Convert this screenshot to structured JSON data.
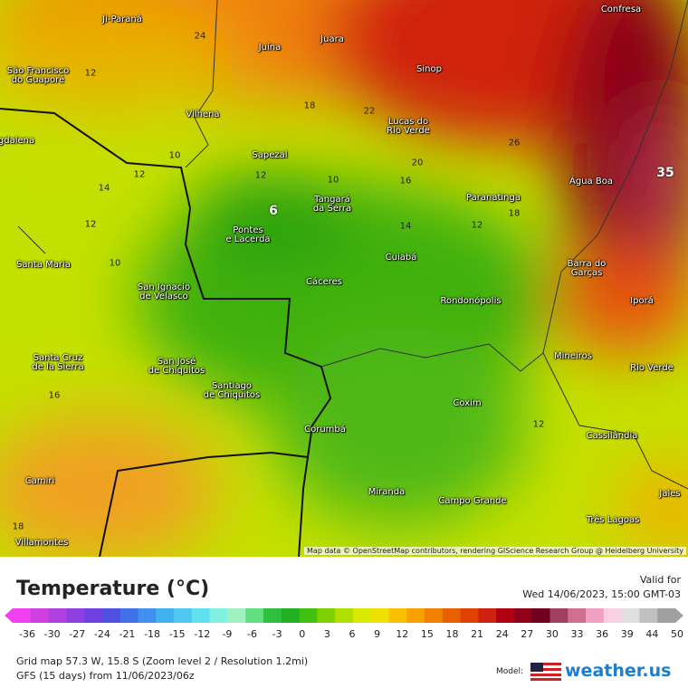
{
  "map": {
    "cities": [
      "Ji-Paraná",
      "Confresa",
      "Juína",
      "Juara",
      "São Francisco\ndo Guaporé",
      "Sinop",
      "Vilhena",
      "Lucas do\nRio Verde",
      "gdalena",
      "Sapezal",
      "Água Boa",
      "Tangará\nda Serra",
      "Paranatinga",
      "Pontes\ne Lacerda",
      "Cuiabá",
      "Barra do\nGarças",
      "Santa Maria",
      "Cáceres",
      "San Ignacio\nde Velasco",
      "Rondonópolis",
      "Iporá",
      "Santa Cruz\nde la Sierra",
      "San José\nde Chiquitos",
      "Mineiros",
      "Rio Verde",
      "Santiago\nde Chiquitos",
      "Coxim",
      "Corumbá",
      "Cassilândia",
      "Camiri",
      "Miranda",
      "Campo Grande",
      "Jales",
      "Três Lagoas",
      "Villamontes"
    ],
    "contour_labels": [
      "24",
      "12",
      "18",
      "22",
      "10",
      "12",
      "14",
      "6",
      "16",
      "20",
      "26",
      "12",
      "18",
      "14",
      "10",
      "12",
      "16",
      "35",
      "12",
      "10",
      "12",
      "18"
    ],
    "attribution": "Map data © OpenStreetMap contributors, rendering GIScience Research Group @ Heidelberg University"
  },
  "legend": {
    "title": "Temperature (°C)",
    "valid_label": "Valid for",
    "valid_time": "Wed 14/06/2023, 15:00 GMT-03",
    "ticks": [
      -36,
      -30,
      -27,
      -24,
      -21,
      -18,
      -15,
      -12,
      -9,
      -6,
      -3,
      0,
      3,
      6,
      9,
      12,
      15,
      18,
      21,
      24,
      27,
      30,
      33,
      36,
      39,
      44,
      50
    ]
  },
  "footer": {
    "grid": "Grid map 57.3 W, 15.8 S (Zoom level 2 / Resolution 1.2mi)",
    "model_run": "GFS (15 days) from 11/06/2023/06z",
    "model_label": "Model:",
    "brand": "weather.us"
  }
}
